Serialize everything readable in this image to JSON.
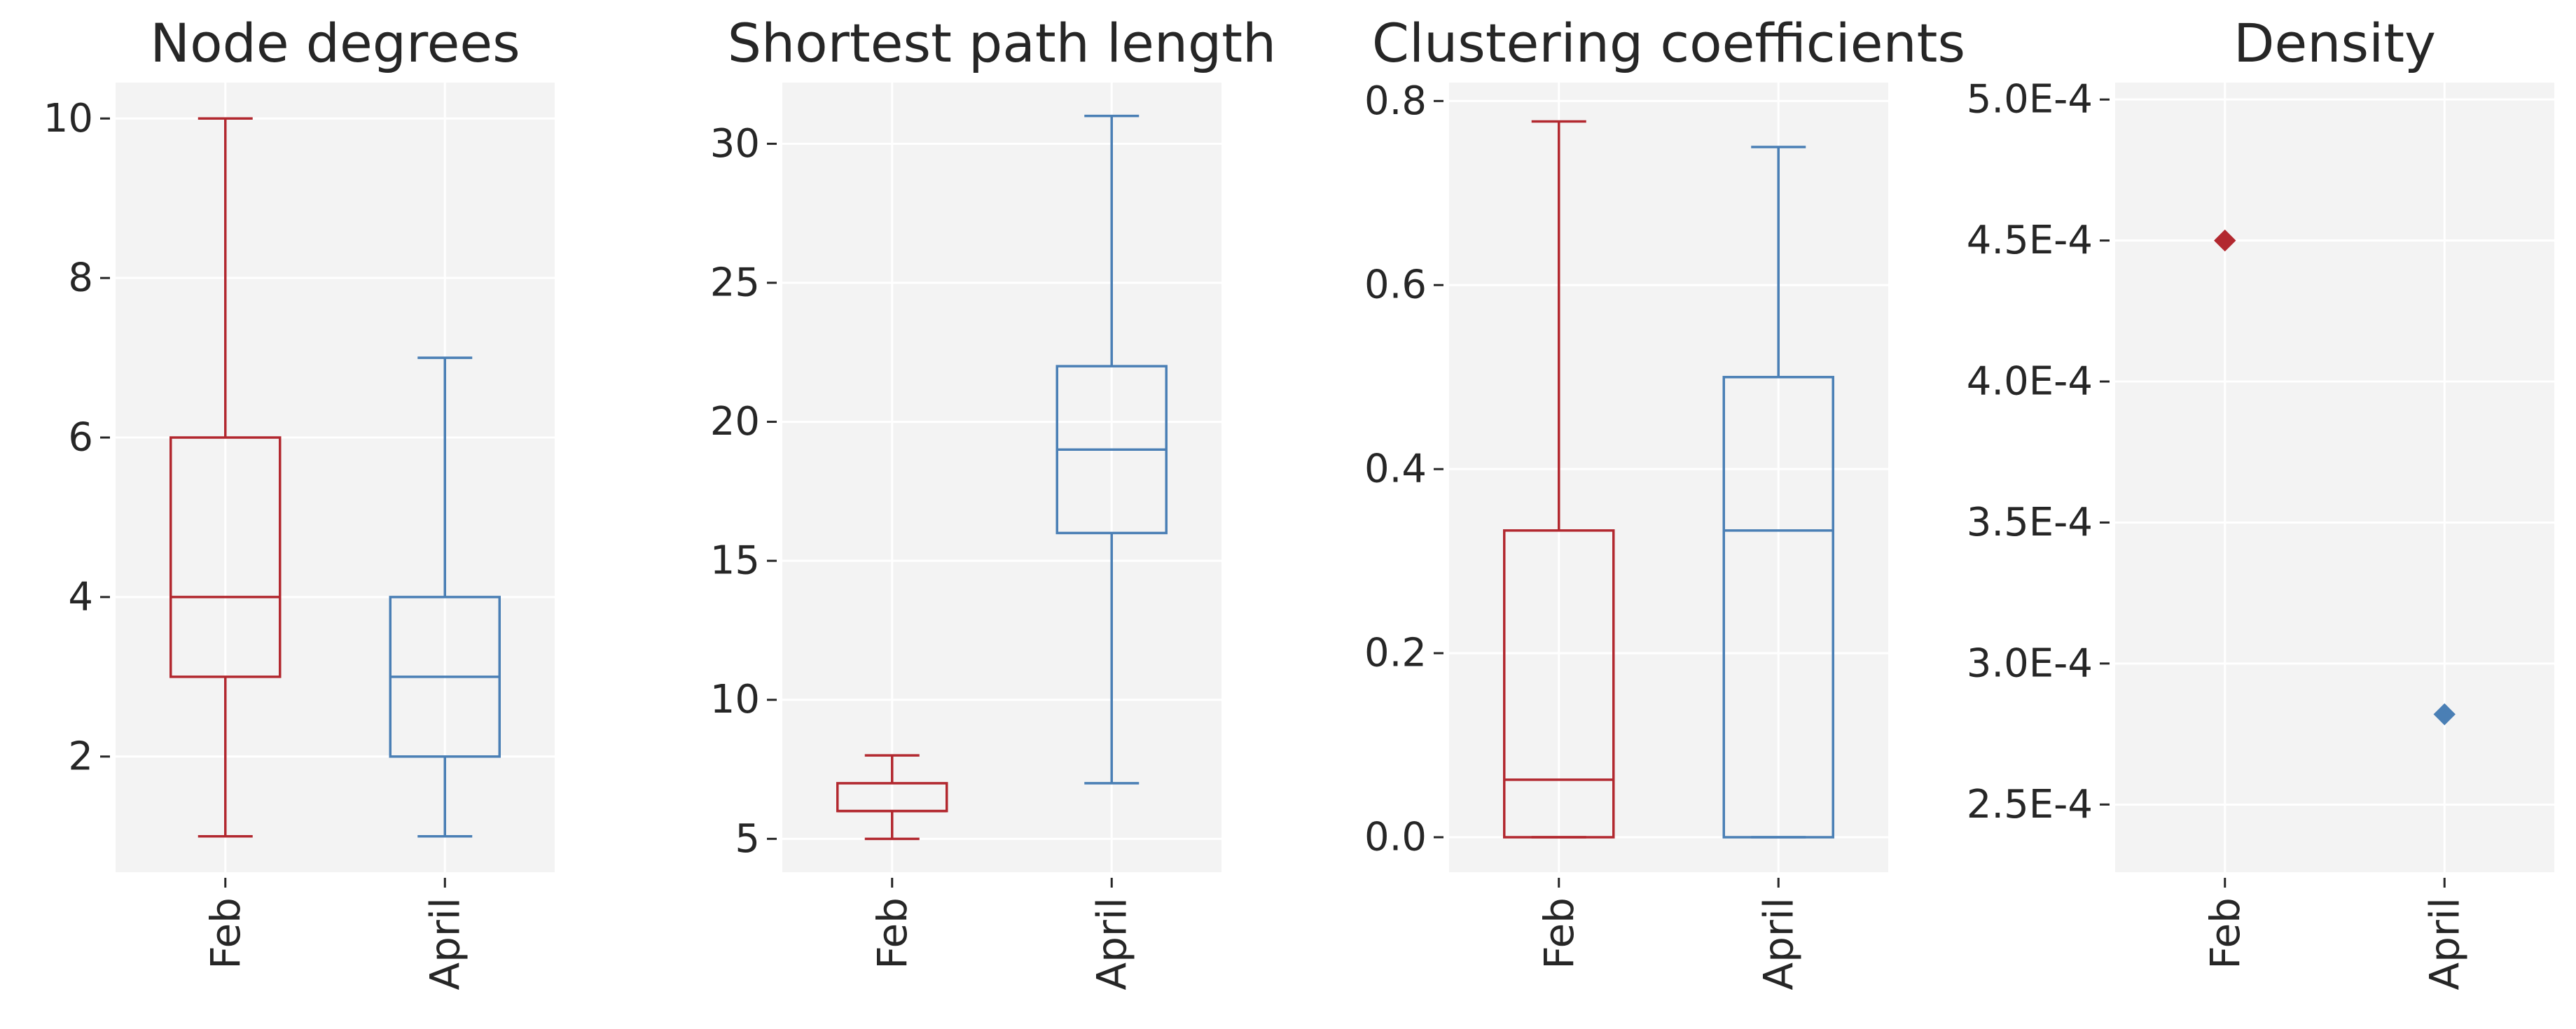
{
  "figure": {
    "background": "#ffffff",
    "panel_bg": "#f3f3f3",
    "grid_color": "#ffffff"
  },
  "chart_data": [
    {
      "type": "box",
      "title": "Node degrees",
      "categories": [
        "Feb",
        "April"
      ],
      "colors": [
        "#b2282f",
        "#4a7fb5"
      ],
      "ylim": [
        0.55,
        10.45
      ],
      "yticks": [
        2,
        4,
        6,
        8,
        10
      ],
      "ytick_labels": [
        "2",
        "4",
        "6",
        "8",
        "10"
      ],
      "boxes": [
        {
          "whislo": 1,
          "q1": 3,
          "median": 4,
          "q3": 6,
          "whishi": 10
        },
        {
          "whislo": 1,
          "q1": 2,
          "median": 3,
          "q3": 4,
          "whishi": 7
        }
      ],
      "grid": true
    },
    {
      "type": "box",
      "title": "Shortest path length",
      "categories": [
        "Feb",
        "April"
      ],
      "colors": [
        "#b2282f",
        "#4a7fb5"
      ],
      "ylim": [
        3.8,
        32.2
      ],
      "yticks": [
        5,
        10,
        15,
        20,
        25,
        30
      ],
      "ytick_labels": [
        "5",
        "10",
        "15",
        "20",
        "25",
        "30"
      ],
      "boxes": [
        {
          "whislo": 5,
          "q1": 6,
          "median": 6,
          "q3": 7,
          "whishi": 8
        },
        {
          "whislo": 7,
          "q1": 16,
          "median": 19,
          "q3": 22,
          "whishi": 31
        }
      ],
      "grid": true
    },
    {
      "type": "box",
      "title": "Clustering coefficients",
      "categories": [
        "Feb",
        "April"
      ],
      "colors": [
        "#b2282f",
        "#4a7fb5"
      ],
      "ylim": [
        -0.038,
        0.82
      ],
      "yticks": [
        0.0,
        0.2,
        0.4,
        0.6,
        0.8
      ],
      "ytick_labels": [
        "0.0",
        "0.2",
        "0.4",
        "0.6",
        "0.8"
      ],
      "boxes": [
        {
          "whislo": 0.0,
          "q1": 0.0,
          "median": 0.0625,
          "q3": 0.3333,
          "whishi": 0.7778
        },
        {
          "whislo": 0.0,
          "q1": 0.0,
          "median": 0.3333,
          "q3": 0.5,
          "whishi": 0.75
        }
      ],
      "grid": true
    },
    {
      "type": "scatter",
      "title": "Density",
      "categories": [
        "Feb",
        "April"
      ],
      "colors": [
        "#b2282f",
        "#4a7fb5"
      ],
      "marker": "diamond",
      "ylim": [
        0.000226,
        0.000506
      ],
      "yticks": [
        0.00025,
        0.0003,
        0.00035,
        0.0004,
        0.00045,
        0.0005
      ],
      "ytick_labels": [
        "2.5E-4",
        "3.0E-4",
        "3.5E-4",
        "4.0E-4",
        "4.5E-4",
        "5.0E-4"
      ],
      "values": [
        0.00045,
        0.000282
      ],
      "grid": true
    }
  ]
}
